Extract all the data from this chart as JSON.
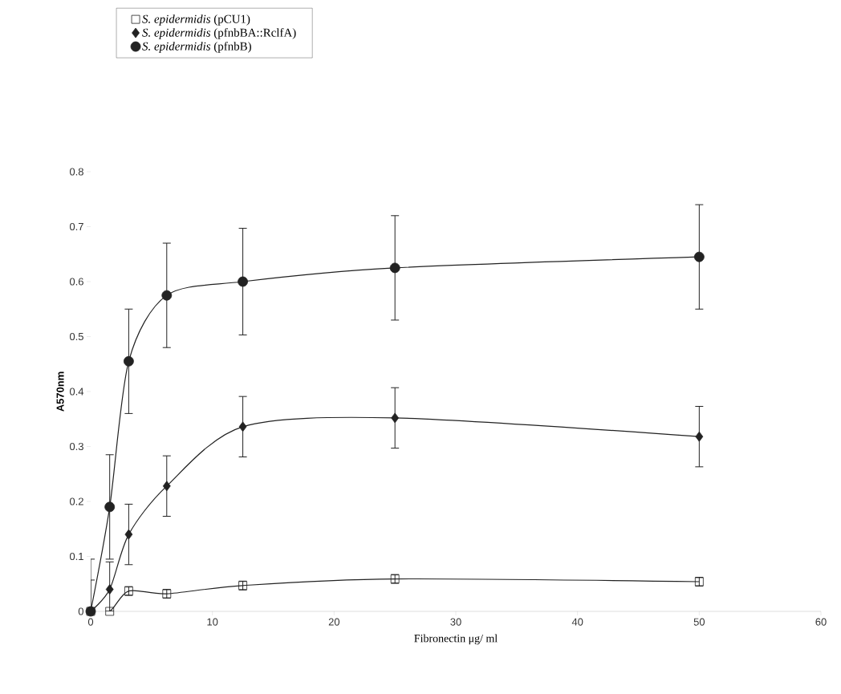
{
  "chart_data": {
    "type": "line",
    "xlabel": "Fibronectin μg/ ml",
    "ylabel": "A570nm",
    "x": [
      0,
      1.5625,
      3.125,
      6.25,
      12.5,
      25,
      50
    ],
    "series": [
      {
        "name": "*S. epidermidis* (pCU1)",
        "color": "#222222",
        "marker": "square",
        "values": [
          0,
          0,
          0.037,
          0.032,
          0.047,
          0.059,
          0.054
        ],
        "errors": [
          null,
          null,
          0.008,
          0.008,
          0.008,
          0.008,
          0.008
        ]
      },
      {
        "name": "*S. epidermidis* (pfnbBA::RclfA)",
        "color": "#222222",
        "marker": "diamond",
        "values": [
          0,
          0.04,
          0.14,
          0.228,
          0.336,
          0.352,
          0.318
        ],
        "errors": [
          [
            0,
            0.057
          ],
          0.05,
          0.055,
          0.055,
          0.055,
          0.055,
          0.055
        ]
      },
      {
        "name": "*S. epidermidis* (pfnbB)",
        "color": "#222222",
        "marker": "circle",
        "values": [
          0,
          0.19,
          0.455,
          0.575,
          0.6,
          0.625,
          0.645
        ],
        "errors": [
          [
            0,
            0.095
          ],
          0.095,
          0.095,
          0.095,
          0.097,
          0.095,
          0.095
        ]
      }
    ],
    "xlim": [
      0,
      60
    ],
    "xticks": [
      0,
      10,
      20,
      30,
      40,
      50,
      60
    ],
    "ylim": [
      0,
      0.8
    ],
    "yticks": [
      0,
      0.1,
      0.2,
      0.3,
      0.4,
      0.5,
      0.6,
      0.7,
      0.8
    ],
    "grid": false,
    "legend": "top left",
    "line_style": "solid"
  }
}
